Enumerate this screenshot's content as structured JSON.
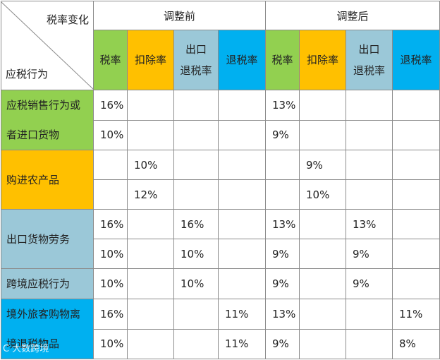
{
  "header": {
    "corner_top": "税率变化",
    "corner_bottom": "应税行为",
    "before": "调整前",
    "after": "调整后",
    "columns": [
      {
        "line1": "税率",
        "line2": ""
      },
      {
        "line1": "扣除率",
        "line2": ""
      },
      {
        "line1": "出口",
        "line2": "退税率"
      },
      {
        "line1": "退税率",
        "line2": ""
      }
    ]
  },
  "groups": [
    {
      "label_lines": [
        "应税销售行为或",
        "者进口货物"
      ],
      "color": "#92d050",
      "rows": [
        {
          "before": [
            "16%",
            "",
            "",
            ""
          ],
          "after": [
            "13%",
            "",
            "",
            ""
          ]
        },
        {
          "before": [
            "10%",
            "",
            "",
            ""
          ],
          "after": [
            "9%",
            "",
            "",
            ""
          ]
        }
      ]
    },
    {
      "label_lines": [
        "购进农产品"
      ],
      "color": "#ffc000",
      "rows": [
        {
          "before": [
            "",
            "10%",
            "",
            ""
          ],
          "after": [
            "",
            "9%",
            "",
            ""
          ]
        },
        {
          "before": [
            "",
            "12%",
            "",
            ""
          ],
          "after": [
            "",
            "10%",
            "",
            ""
          ]
        }
      ]
    },
    {
      "label_lines": [
        "出口货物劳务"
      ],
      "color": "#9bc8d8",
      "rows": [
        {
          "before": [
            "16%",
            "",
            "16%",
            ""
          ],
          "after": [
            "13%",
            "",
            "13%",
            ""
          ]
        },
        {
          "before": [
            "10%",
            "",
            "10%",
            ""
          ],
          "after": [
            "9%",
            "",
            "9%",
            ""
          ]
        }
      ]
    },
    {
      "label_lines": [
        "跨境应税行为"
      ],
      "color": "#9bc8d8",
      "rows": [
        {
          "before": [
            "10%",
            "",
            "10%",
            ""
          ],
          "after": [
            "9%",
            "",
            "9%",
            ""
          ]
        }
      ]
    },
    {
      "label_lines": [
        "境外旅客购物离",
        "境退税物品"
      ],
      "color": "#00b0f0",
      "rows": [
        {
          "before": [
            "16%",
            "",
            "",
            "11%"
          ],
          "after": [
            "13%",
            "",
            "",
            "11%"
          ]
        },
        {
          "before": [
            "10%",
            "",
            "",
            "11%"
          ],
          "after": [
            "9%",
            "",
            "",
            "8%"
          ]
        }
      ]
    }
  ],
  "watermark": "C 大数跨境",
  "colors": {
    "rate": "#92d050",
    "deduct": "#ffc000",
    "export": "#9bc8d8",
    "refund": "#00b0f0"
  }
}
